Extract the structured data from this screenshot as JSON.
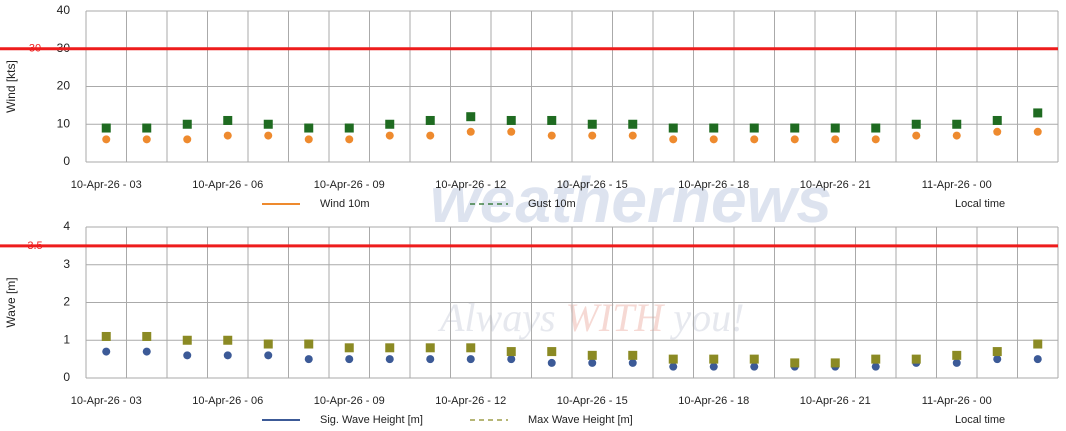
{
  "watermark": {
    "brand": "weathernews",
    "slogan": [
      "Always ",
      "WITH",
      " you!"
    ]
  },
  "chart_data": [
    {
      "type": "line",
      "y_label": "Wind [kts]",
      "note": "Local time",
      "categories": [
        "10-Apr-26 - 03",
        null,
        null,
        "10-Apr-26 - 06",
        null,
        null,
        "10-Apr-26 - 09",
        null,
        null,
        "10-Apr-26 - 12",
        null,
        null,
        "10-Apr-26 - 15",
        null,
        null,
        "10-Apr-26 - 18",
        null,
        null,
        "10-Apr-26 - 21",
        null,
        null,
        "11-Apr-26 - 00",
        null,
        null
      ],
      "series": [
        {
          "name": "Wind 10m",
          "color": "#ee8a2e",
          "dashed": false,
          "marker": "circle",
          "values": [
            6,
            6,
            6,
            7,
            7,
            6,
            6,
            7,
            7,
            8,
            8,
            7,
            7,
            7,
            6,
            6,
            6,
            6,
            6,
            6,
            7,
            7,
            8,
            8
          ]
        },
        {
          "name": "Gust 10m",
          "color": "#1f6b21",
          "dashed": true,
          "marker": "square",
          "values": [
            9,
            9,
            10,
            11,
            10,
            9,
            9,
            10,
            11,
            12,
            11,
            11,
            10,
            10,
            9,
            9,
            9,
            9,
            9,
            9,
            10,
            10,
            11,
            13
          ]
        }
      ],
      "ylim": [
        0,
        40
      ],
      "yticks": [
        0,
        10,
        20,
        30,
        40
      ],
      "grid": true,
      "threshold": {
        "value": 30,
        "color": "#ee1c1c"
      }
    },
    {
      "type": "line",
      "y_label": "Wave [m]",
      "note": "Local time",
      "categories": [
        "10-Apr-26 - 03",
        null,
        null,
        "10-Apr-26 - 06",
        null,
        null,
        "10-Apr-26 - 09",
        null,
        null,
        "10-Apr-26 - 12",
        null,
        null,
        "10-Apr-26 - 15",
        null,
        null,
        "10-Apr-26 - 18",
        null,
        null,
        "10-Apr-26 - 21",
        null,
        null,
        "11-Apr-26 - 00",
        null,
        null
      ],
      "series": [
        {
          "name": "Sig. Wave Height [m]",
          "color": "#3c5a97",
          "dashed": false,
          "marker": "circle",
          "values": [
            0.7,
            0.7,
            0.6,
            0.6,
            0.6,
            0.5,
            0.5,
            0.5,
            0.5,
            0.5,
            0.5,
            0.4,
            0.4,
            0.4,
            0.3,
            0.3,
            0.3,
            0.3,
            0.3,
            0.3,
            0.4,
            0.4,
            0.5,
            0.5
          ]
        },
        {
          "name": "Max Wave Height [m]",
          "color": "#8b8a24",
          "dashed": true,
          "marker": "square",
          "values": [
            1.1,
            1.1,
            1.0,
            1.0,
            0.9,
            0.9,
            0.8,
            0.8,
            0.8,
            0.8,
            0.7,
            0.7,
            0.6,
            0.6,
            0.5,
            0.5,
            0.5,
            0.4,
            0.4,
            0.5,
            0.5,
            0.6,
            0.7,
            0.9
          ]
        }
      ],
      "ylim": [
        0,
        4
      ],
      "yticks": [
        0,
        1,
        2,
        3,
        4
      ],
      "grid": true,
      "threshold": {
        "value": 3.5,
        "color": "#ee1c1c"
      }
    }
  ]
}
